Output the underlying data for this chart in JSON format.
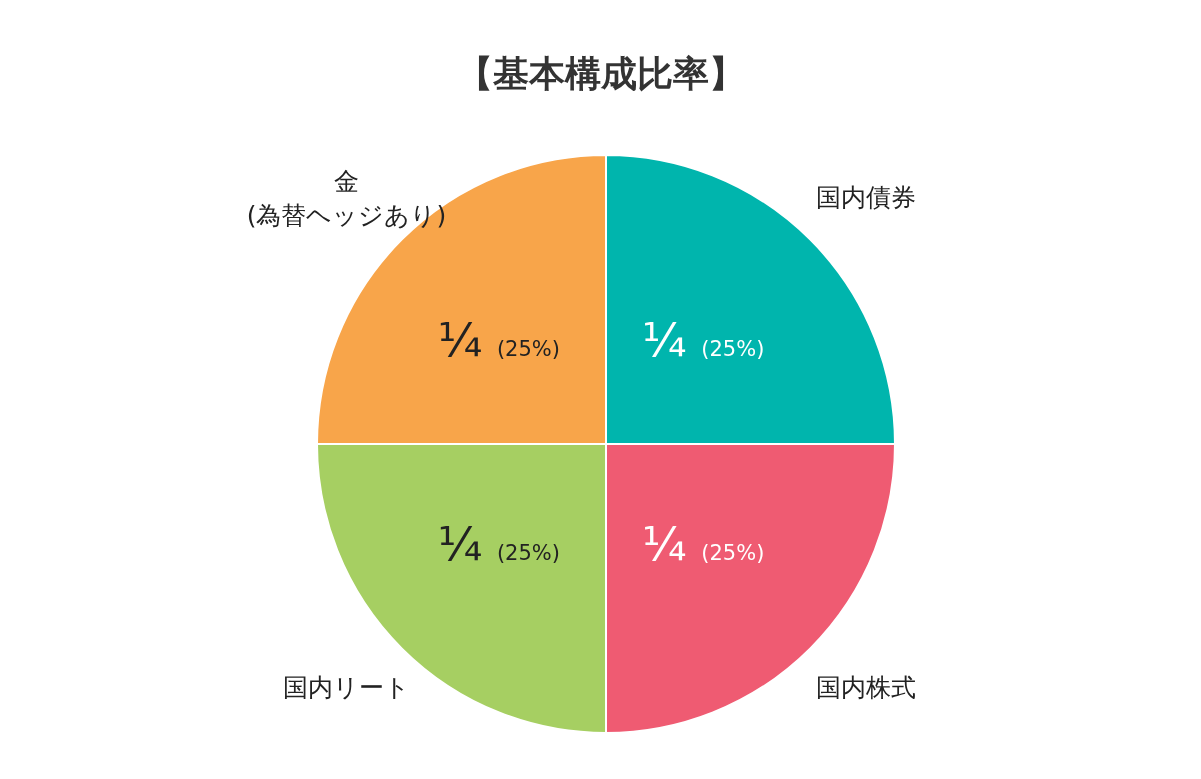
{
  "chart_data": {
    "type": "pie",
    "title": "【基本構成比率】",
    "categories": [
      "国内債券",
      "国内株式",
      "国内リート",
      "金\n(為替ヘッジあり)"
    ],
    "values": [
      25,
      25,
      25,
      25
    ],
    "colors": [
      "#00b5ad",
      "#ef5b72",
      "#a6cf62",
      "#f8a54a"
    ],
    "value_labels": [
      "¼ (25%)",
      "¼ (25%)",
      "¼ (25%)",
      "¼ (25%)"
    ],
    "legend": false
  }
}
